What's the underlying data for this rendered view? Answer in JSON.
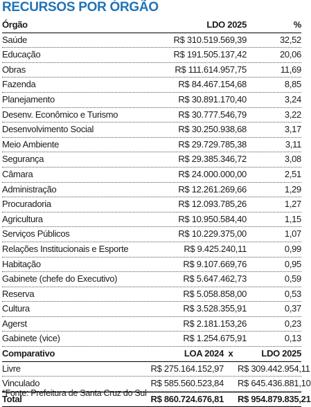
{
  "title": "RECURSOS POR ÓRGÃO",
  "header": {
    "col_name": "Órgão",
    "col_value": "LDO 2025",
    "col_pct": "%"
  },
  "rows": [
    {
      "name": "Saúde",
      "value": "R$ 310.519.569,39",
      "pct": "32,52"
    },
    {
      "name": "Educação",
      "value": "R$ 191.505.137,42",
      "pct": "20,06"
    },
    {
      "name": "Obras",
      "value": "R$ 111.614.957,75",
      "pct": "11,69"
    },
    {
      "name": "Fazenda",
      "value": "R$ 84.467.154,68",
      "pct": "8,85"
    },
    {
      "name": "Planejamento",
      "value": "R$ 30.891.170,40",
      "pct": "3,24"
    },
    {
      "name": "Desenv. Econômico e Turismo",
      "value": "R$ 30.777.546,79",
      "pct": "3,22"
    },
    {
      "name": "Desenvolvimento Social",
      "value": "R$ 30.250.938,68",
      "pct": "3,17"
    },
    {
      "name": "Meio Ambiente",
      "value": "R$ 29.729.785,38",
      "pct": "3,11"
    },
    {
      "name": "Segurança",
      "value": "R$ 29.385.346,72",
      "pct": "3,08"
    },
    {
      "name": "Câmara",
      "value": "R$ 24.000.000,00",
      "pct": "2,51"
    },
    {
      "name": "Administração",
      "value": "R$ 12.261.269,66",
      "pct": "1,29"
    },
    {
      "name": "Procuradoria",
      "value": "R$ 12.093.785,26",
      "pct": "1,27"
    },
    {
      "name": "Agricultura",
      "value": "R$ 10.950.584,40",
      "pct": "1,15"
    },
    {
      "name": "Serviços Públicos",
      "value": "R$ 10.229.375,00",
      "pct": "1,07"
    },
    {
      "name": "Relações Institucionais e Esporte",
      "value": "R$ 9.425.240,11",
      "pct": "0,99"
    },
    {
      "name": "Habitação",
      "value": "R$ 9.107.669,76",
      "pct": "0,95"
    },
    {
      "name": "Gabinete (chefe do Executivo)",
      "value": "R$ 5.647.462,73",
      "pct": "0,59"
    },
    {
      "name": "Reserva",
      "value": "R$ 5.058.858,00",
      "pct": "0,53"
    },
    {
      "name": "Cultura",
      "value": "R$ 3.528.355,91",
      "pct": "0,37"
    },
    {
      "name": "Agerst",
      "value": "R$ 2.181.153,26",
      "pct": "0,23"
    },
    {
      "name": "Gabinete (vice)",
      "value": "R$ 1.254.675,91",
      "pct": "0,13"
    }
  ],
  "comparativo": {
    "label": "Comparativo",
    "col_a": "LOA 2024",
    "sep": "x",
    "col_b": "LDO 2025",
    "rows": [
      {
        "name": "Livre",
        "a": "R$ 275.164.152,97",
        "b": "R$ 309.442.954,11"
      },
      {
        "name": "Vinculado",
        "a": "R$ 585.560.523,84",
        "b": "R$ 645.436.881,10"
      }
    ],
    "total": {
      "name": "Total",
      "a": "R$ 860.724.676,81",
      "b": "R$ 954.879.835,21"
    }
  },
  "source": "*Fonte: Prefeitura de Santa Cruz do Sul"
}
